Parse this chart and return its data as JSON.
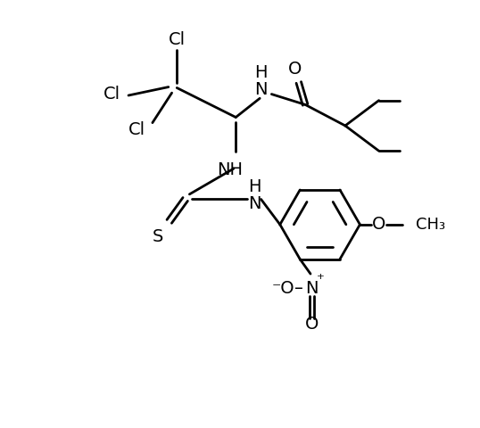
{
  "bg_color": "#ffffff",
  "line_color": "#000000",
  "line_width": 2.0,
  "font_size": 14,
  "figsize": [
    5.38,
    4.8
  ],
  "dpi": 100,
  "xlim": [
    0,
    10
  ],
  "ylim": [
    0,
    10
  ]
}
